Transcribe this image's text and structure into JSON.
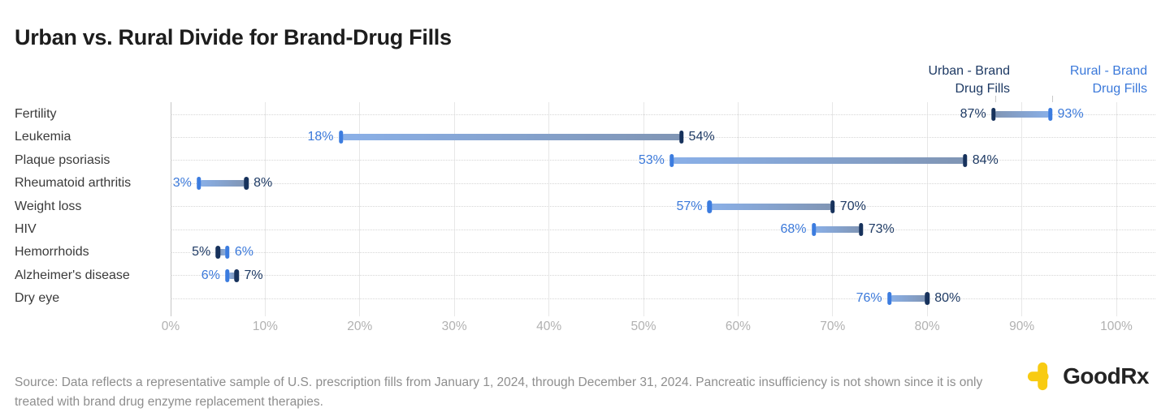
{
  "title": "Urban vs. Rural Divide for Brand-Drug Fills",
  "legend": {
    "urban_label": "Urban - Brand\nDrug Fills",
    "rural_label": "Rural - Brand\nDrug Fills"
  },
  "source": "Source: Data reflects a representative sample of U.S. prescription fills from January 1, 2024, through December 31, 2024. Pancreatic insufficiency is not shown since it is only treated with brand drug enzyme replacement therapies.",
  "brand": {
    "name": "GoodRx"
  },
  "colors": {
    "urban_navy": "#1e3a64",
    "urban_cap": "#17325c",
    "rural_blue": "#3b79da",
    "rural_cap": "#3c7cdf",
    "band_light": "#8ab0e8",
    "band_dark": "#8095b4",
    "gridline": "#e7e7e7",
    "axis_zero_line": "#c6c6c6",
    "tick_text": "#b1b1b1",
    "brand_yellow": "#f8cb12"
  },
  "chart_data": {
    "type": "dumbbell",
    "title": "Urban vs. Rural Divide for Brand-Drug Fills",
    "xlabel": "",
    "ylabel": "",
    "x_axis": {
      "min": 0,
      "max": 100,
      "unit": "%",
      "ticks": [
        "0%",
        "10%",
        "20%",
        "30%",
        "40%",
        "50%",
        "60%",
        "70%",
        "80%",
        "90%",
        "100%"
      ]
    },
    "grid": "vertical solid at each 10%, dotted horizontal per category row",
    "legend_position": "top-right",
    "series": [
      {
        "name": "Urban - Brand Drug Fills",
        "color": "#1e3a64"
      },
      {
        "name": "Rural - Brand Drug Fills",
        "color": "#3b79da"
      }
    ],
    "categories": [
      "Fertility",
      "Leukemia",
      "Plaque psoriasis",
      "Rheumatoid arthritis",
      "Weight loss",
      "HIV",
      "Hemorrhoids",
      "Alzheimer's disease",
      "Dry eye"
    ],
    "rows": [
      {
        "label": "Fertility",
        "urban": 87,
        "rural": 93
      },
      {
        "label": "Leukemia",
        "urban": 54,
        "rural": 18
      },
      {
        "label": "Plaque psoriasis",
        "urban": 84,
        "rural": 53
      },
      {
        "label": "Rheumatoid arthritis",
        "urban": 8,
        "rural": 3
      },
      {
        "label": "Weight loss",
        "urban": 70,
        "rural": 57
      },
      {
        "label": "HIV",
        "urban": 73,
        "rural": 68
      },
      {
        "label": "Hemorrhoids",
        "urban": 5,
        "rural": 6
      },
      {
        "label": "Alzheimer's disease",
        "urban": 7,
        "rural": 6
      },
      {
        "label": "Dry eye",
        "urban": 80,
        "rural": 76
      }
    ],
    "value_label_format": "{value}%"
  }
}
